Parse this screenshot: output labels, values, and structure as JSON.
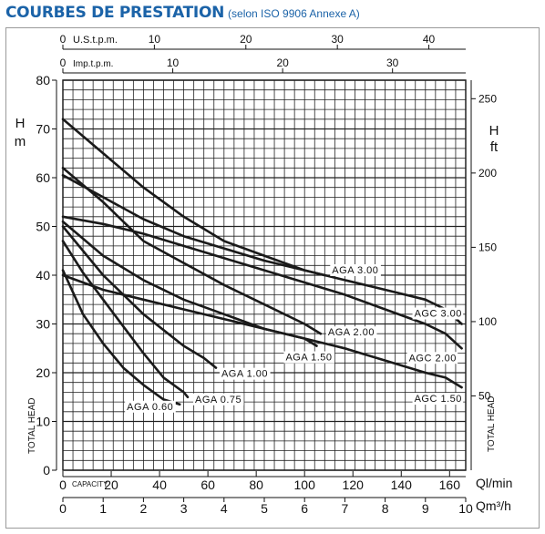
{
  "header": {
    "title": "COURBES DE PRESTATION",
    "subtitle": "(selon ISO 9906 Annexe A)"
  },
  "colors": {
    "title": "#1b63a8",
    "grid": "#222222",
    "curve": "#1a1a1a"
  },
  "chart_data": {
    "type": "line",
    "grid": true,
    "axes": {
      "left_head_m": {
        "label_top": "H",
        "label_unit": "m",
        "label_vertical": "TOTAL HEAD",
        "ylim": [
          0,
          80
        ],
        "ticks": [
          0,
          10,
          20,
          30,
          40,
          50,
          60,
          70,
          80
        ]
      },
      "right_head_ft": {
        "label_top": "H",
        "label_unit": "ft",
        "label_vertical": "TOTAL HEAD",
        "ticks": [
          50,
          100,
          150,
          200,
          250
        ]
      },
      "bottom_lpm": {
        "label": "Ql/min",
        "caption": "CAPACITY",
        "xlim": [
          0,
          166.7
        ],
        "ticks": [
          0,
          20,
          40,
          60,
          80,
          100,
          120,
          140,
          160
        ]
      },
      "bottom_m3h": {
        "label": "Qm³/h",
        "xlim": [
          0,
          10
        ],
        "ticks": [
          0,
          1,
          2,
          3,
          4,
          5,
          6,
          7,
          8,
          9,
          10
        ]
      },
      "top_usgpm": {
        "label": "U.S.t.p.m.",
        "ticks": [
          0,
          10,
          20,
          30,
          40
        ]
      },
      "top_impgpm": {
        "label": "Imp.t.p.m.",
        "ticks": [
          0,
          10,
          20,
          30
        ]
      }
    },
    "series": [
      {
        "name": "AGA 0.60",
        "x_m3h": [
          0,
          0.5,
          1,
          1.5,
          2,
          2.5,
          2.9
        ],
        "y_m": [
          41,
          32,
          26,
          21,
          17.5,
          14.5,
          13.5
        ]
      },
      {
        "name": "AGA 0.75",
        "x_m3h": [
          0,
          0.5,
          1,
          1.5,
          2,
          2.5,
          3,
          3.1
        ],
        "y_m": [
          47,
          40.5,
          35,
          29.5,
          24,
          19,
          16,
          15
        ]
      },
      {
        "name": "AGA 1.00",
        "x_m3h": [
          0,
          1,
          2,
          3,
          3.5,
          3.8
        ],
        "y_m": [
          50,
          40,
          32,
          25.5,
          23,
          21
        ]
      },
      {
        "name": "AGA 1.50",
        "x_m3h": [
          0,
          1,
          2,
          3,
          4,
          5,
          6,
          6.3
        ],
        "y_m": [
          51,
          44,
          39,
          35,
          32,
          29,
          27,
          25.5
        ]
      },
      {
        "name": "AGA 2.00",
        "x_m3h": [
          0,
          1,
          2,
          3,
          4,
          5,
          6,
          6.4
        ],
        "y_m": [
          62,
          55,
          47,
          42.5,
          38,
          34,
          30,
          28
        ]
      },
      {
        "name": "AGA 3.00",
        "x_m3h": [
          0,
          1,
          2,
          3,
          4,
          5,
          6,
          6.5
        ],
        "y_m": [
          72,
          65,
          58,
          52,
          47,
          44,
          41,
          40
        ]
      },
      {
        "name": "AGC 1.50",
        "x_m3h": [
          0,
          1,
          2,
          3,
          4,
          5,
          6,
          7,
          8,
          9,
          9.5,
          9.9
        ],
        "y_m": [
          40,
          37,
          35,
          33,
          31,
          29,
          27,
          25,
          22.5,
          20,
          19,
          17
        ]
      },
      {
        "name": "AGC 2.00",
        "x_m3h": [
          0,
          1,
          2,
          3,
          4,
          5,
          6,
          7,
          8,
          9,
          9.5,
          9.9
        ],
        "y_m": [
          52,
          50.5,
          48.5,
          46,
          43.5,
          41,
          38.5,
          36,
          33,
          30,
          28,
          25
        ]
      },
      {
        "name": "AGC 3.00",
        "x_m3h": [
          0,
          1,
          2,
          3,
          4,
          5,
          6,
          7,
          8,
          9,
          9.5,
          9.9
        ],
        "y_m": [
          60.5,
          56,
          51.5,
          48,
          45.5,
          43,
          41,
          39,
          37,
          35,
          33,
          30
        ]
      }
    ]
  }
}
